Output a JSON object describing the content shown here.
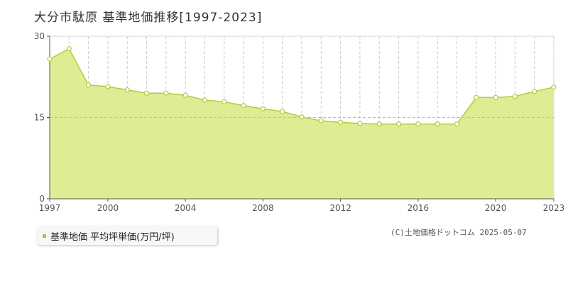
{
  "title": "大分市駄原 基準地価推移[1997-2023]",
  "legend_label": "基準地価 平均坪単価(万円/坪)",
  "copyright": "(C)土地価格ドットコム 2025-05-07",
  "colors": {
    "fill": "#dcec8e",
    "line": "#a8d13c",
    "point_fill": "#ffffff",
    "grid": "#cccccc",
    "legend_marker": "#9acd32"
  },
  "chart_data": {
    "type": "area",
    "x": [
      1997,
      1998,
      1999,
      2000,
      2001,
      2002,
      2003,
      2004,
      2005,
      2006,
      2007,
      2008,
      2009,
      2010,
      2011,
      2012,
      2013,
      2014,
      2015,
      2016,
      2017,
      2018,
      2019,
      2020,
      2021,
      2022,
      2023
    ],
    "values": [
      25.8,
      27.7,
      21.0,
      20.7,
      20.1,
      19.5,
      19.5,
      19.1,
      18.2,
      17.9,
      17.2,
      16.6,
      16.1,
      15.1,
      14.4,
      14.1,
      13.9,
      13.8,
      13.8,
      13.8,
      13.8,
      13.8,
      18.7,
      18.7,
      18.9,
      19.8,
      20.6
    ],
    "ylim": [
      0,
      30
    ],
    "yticks": [
      0,
      15,
      30
    ],
    "xticks": [
      1997,
      2000,
      2004,
      2008,
      2012,
      2016,
      2020,
      2023
    ],
    "grid": true,
    "legend": "bottom-left"
  }
}
